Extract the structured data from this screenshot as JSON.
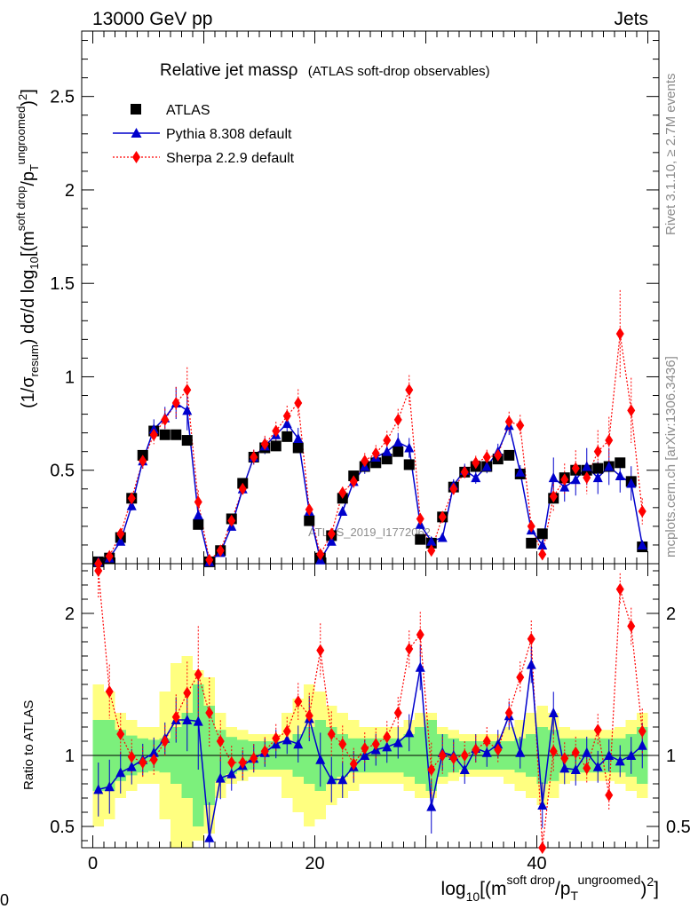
{
  "header": {
    "energy_label": "13000 GeV pp",
    "category_label": "Jets"
  },
  "side_text": {
    "rivet": "Rivet 3.1.10, ≥ 2.7M events",
    "mcplots": "mcplots.cern.ch [arXiv:1306.3436]"
  },
  "chart_data": {
    "type": "line",
    "title": "Relative jet mass",
    "title_symbol": "ρ",
    "subtitle": "(ATLAS soft-drop observables)",
    "analysis_label": "ATLAS_2019_I1772062",
    "ylabel_main": "(1/σresum) dσ/d log10[(m soft drop/pT ungroomed)2]",
    "ylabel_ratio": "Ratio to ATLAS",
    "xlabel": "log10[(m soft drop/pT ungroomed)2]",
    "bottom_left_label": "0",
    "xlim": [
      -1,
      51
    ],
    "ylim_main": [
      0,
      2.85
    ],
    "ylim_ratio": [
      0.35,
      2.35
    ],
    "x_ticks": [
      "0",
      "20",
      "40"
    ],
    "y_ticks_main": [
      "0.5",
      "1",
      "1.5",
      "2",
      "2.5"
    ],
    "y_ticks_ratio": [
      "0.5",
      "1",
      "2"
    ],
    "legend": [
      "ATLAS",
      "Pythia 8.308 default",
      "Sherpa 2.2.9 default"
    ],
    "colors": {
      "atlas": "#000000",
      "pythia": "#0000cc",
      "sherpa": "#ff0000",
      "band_inner": "#7cf07c",
      "band_outer": "#ffff80"
    },
    "x": [
      0.5,
      1.5,
      2.5,
      3.5,
      4.5,
      5.5,
      6.5,
      7.5,
      8.5,
      9.5,
      10.5,
      11.5,
      12.5,
      13.5,
      14.5,
      15.5,
      16.5,
      17.5,
      18.5,
      19.5,
      20.5,
      21.5,
      22.5,
      23.5,
      24.5,
      25.5,
      26.5,
      27.5,
      28.5,
      29.5,
      30.5,
      31.5,
      32.5,
      33.5,
      34.5,
      35.5,
      36.5,
      37.5,
      38.5,
      39.5,
      40.5,
      41.5,
      42.5,
      43.5,
      44.5,
      45.5,
      46.5,
      47.5,
      48.5,
      49.5
    ],
    "series": [
      {
        "name": "ATLAS",
        "values": [
          0.01,
          0.03,
          0.14,
          0.35,
          0.58,
          0.71,
          0.69,
          0.69,
          0.66,
          0.21,
          0.01,
          0.07,
          0.24,
          0.43,
          0.57,
          0.62,
          0.63,
          0.68,
          0.62,
          0.23,
          0.03,
          0.15,
          0.35,
          0.47,
          0.52,
          0.54,
          0.56,
          0.6,
          0.53,
          0.13,
          0.11,
          0.25,
          0.41,
          0.49,
          0.52,
          0.52,
          0.56,
          0.58,
          0.48,
          0.11,
          0.16,
          0.35,
          0.46,
          0.5,
          0.5,
          0.51,
          0.52,
          0.54,
          0.44,
          0.09
        ]
      },
      {
        "name": "Pythia 8.308 default",
        "values": [
          0.01,
          0.03,
          0.12,
          0.31,
          0.55,
          0.72,
          0.78,
          0.86,
          0.82,
          0.26,
          0.01,
          0.06,
          0.2,
          0.4,
          0.57,
          0.63,
          0.69,
          0.75,
          0.67,
          0.28,
          0.02,
          0.12,
          0.28,
          0.44,
          0.52,
          0.57,
          0.6,
          0.65,
          0.62,
          0.21,
          0.12,
          0.14,
          0.42,
          0.5,
          0.46,
          0.52,
          0.6,
          0.74,
          0.49,
          0.18,
          0.1,
          0.46,
          0.41,
          0.45,
          0.52,
          0.46,
          0.52,
          0.47,
          0.43,
          0.1
        ]
      },
      {
        "name": "Sherpa 2.2.9 default",
        "values": [
          -0.01,
          0.04,
          0.16,
          0.35,
          0.55,
          0.69,
          0.77,
          0.86,
          0.93,
          0.33,
          0.02,
          0.07,
          0.23,
          0.4,
          0.57,
          0.64,
          0.71,
          0.79,
          0.86,
          0.29,
          0.05,
          0.16,
          0.38,
          0.44,
          0.55,
          0.59,
          0.66,
          0.77,
          0.93,
          0.24,
          0.07,
          0.25,
          0.4,
          0.49,
          0.54,
          0.57,
          0.58,
          0.76,
          0.74,
          0.2,
          0.05,
          0.36,
          0.45,
          0.51,
          0.46,
          0.6,
          0.66,
          1.23,
          0.82,
          0.28
        ]
      }
    ],
    "ratio": {
      "pythia": [
        0.76,
        0.78,
        0.88,
        0.92,
        0.97,
        1.02,
        1.12,
        1.25,
        1.25,
        1.24,
        0.42,
        0.84,
        0.87,
        0.93,
        0.98,
        1.02,
        1.08,
        1.11,
        1.08,
        1.26,
        0.97,
        0.83,
        0.83,
        0.92,
        1.0,
        1.04,
        1.06,
        1.09,
        1.16,
        1.62,
        0.64,
        1.02,
        1.0,
        0.9,
        1.05,
        1.02,
        1.08,
        1.28,
        1.02,
        1.64,
        0.65,
        1.3,
        0.91,
        0.9,
        1.02,
        0.92,
        1.0,
        0.96,
        1.0,
        1.07
      ],
      "sherpa": [
        2.3,
        1.45,
        1.15,
        0.99,
        0.95,
        0.97,
        1.1,
        1.27,
        1.44,
        1.57,
        1.3,
        1.1,
        0.95,
        0.95,
        0.98,
        1.03,
        1.12,
        1.17,
        1.38,
        1.28,
        1.74,
        1.15,
        1.08,
        0.94,
        1.05,
        1.08,
        1.13,
        1.3,
        1.75,
        1.85,
        0.9,
        1.0,
        0.98,
        1.0,
        1.04,
        1.1,
        1.04,
        1.3,
        1.55,
        1.82,
        0.3,
        1.03,
        0.98,
        1.02,
        0.91,
        1.18,
        0.72,
        2.17,
        1.91,
        1.17
      ],
      "band_inner": [
        0.25,
        0.25,
        0.18,
        0.14,
        0.12,
        0.11,
        0.12,
        0.2,
        0.3,
        0.5,
        0.35,
        0.18,
        0.13,
        0.11,
        0.1,
        0.1,
        0.1,
        0.1,
        0.15,
        0.2,
        0.25,
        0.2,
        0.15,
        0.12,
        0.12,
        0.12,
        0.12,
        0.12,
        0.15,
        0.2,
        0.25,
        0.15,
        0.12,
        0.1,
        0.1,
        0.1,
        0.1,
        0.1,
        0.12,
        0.15,
        0.2,
        0.18,
        0.12,
        0.12,
        0.12,
        0.12,
        0.12,
        0.12,
        0.15,
        0.2
      ],
      "band_outer": [
        0.5,
        0.45,
        0.3,
        0.25,
        0.2,
        0.2,
        0.45,
        0.65,
        0.7,
        0.6,
        0.55,
        0.3,
        0.2,
        0.18,
        0.15,
        0.15,
        0.15,
        0.3,
        0.4,
        0.5,
        0.45,
        0.35,
        0.3,
        0.25,
        0.2,
        0.2,
        0.2,
        0.2,
        0.25,
        0.3,
        0.3,
        0.2,
        0.18,
        0.15,
        0.15,
        0.15,
        0.15,
        0.2,
        0.25,
        0.3,
        0.35,
        0.3,
        0.2,
        0.18,
        0.18,
        0.18,
        0.18,
        0.2,
        0.25,
        0.3
      ]
    }
  }
}
